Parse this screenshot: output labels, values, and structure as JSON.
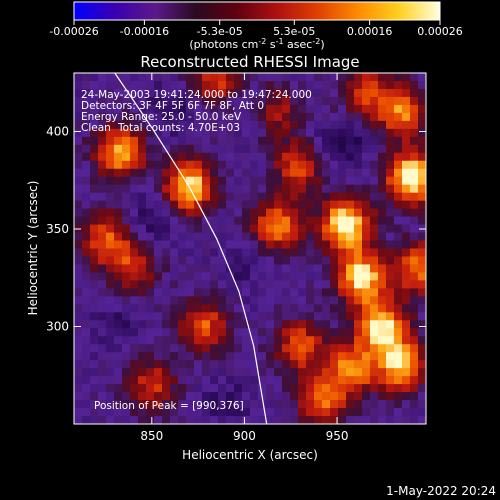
{
  "chart_data": {
    "type": "heatmap",
    "title": "Reconstructed RHESSI Image",
    "xlabel": "Heliocentric X (arcsec)",
    "ylabel": "Heliocentric Y (arcsec)",
    "xlim": [
      808,
      998
    ],
    "ylim": [
      250,
      430
    ],
    "xticks": [
      850,
      900,
      950
    ],
    "xtick_labels": [
      "850",
      "900",
      "950"
    ],
    "yticks": [
      300,
      350,
      400
    ],
    "ytick_labels": [
      "300",
      "350",
      "400"
    ],
    "colorbar": {
      "range": [
        -0.00026,
        0.00026
      ],
      "ticks": [
        -0.00026,
        -0.00016,
        -5.3e-05,
        5.3e-05,
        0.00016,
        0.00026
      ],
      "tick_labels": [
        "-0.00026",
        "-0.00016",
        "-5.3e-05",
        "5.3e-05",
        "0.00016",
        "0.00026"
      ],
      "unit_prefix": "(photons cm",
      "unit_exp1": "-2",
      "unit_mid1": " s",
      "unit_exp2": "-1",
      "unit_mid2": " asec",
      "unit_exp3": "-2",
      "unit_suffix": ")",
      "colors": [
        "#0000ff",
        "#3a00b0",
        "#5a1a8a",
        "#2a0a20",
        "#600010",
        "#b01010",
        "#e04000",
        "#ff8c00",
        "#ffd020",
        "#ffffe0"
      ]
    },
    "limb_curve": [
      [
        830,
        430
      ],
      [
        850,
        402
      ],
      [
        870,
        372
      ],
      [
        885,
        345
      ],
      [
        897,
        318
      ],
      [
        905,
        290
      ],
      [
        912,
        250
      ]
    ],
    "peak_position": [
      990,
      376
    ],
    "hotspots": [
      [
        885,
        426,
        0.5
      ],
      [
        870,
        372,
        0.9
      ],
      [
        833,
        390,
        0.8
      ],
      [
        825,
        345,
        0.6
      ],
      [
        878,
        300,
        0.6
      ],
      [
        840,
        330,
        0.5
      ],
      [
        918,
        352,
        0.7
      ],
      [
        930,
        382,
        0.6
      ],
      [
        955,
        352,
        1.0
      ],
      [
        963,
        325,
        0.9
      ],
      [
        990,
        376,
        1.0
      ],
      [
        985,
        410,
        0.7
      ],
      [
        974,
        300,
        0.9
      ],
      [
        985,
        280,
        0.8
      ],
      [
        958,
        278,
        0.7
      ],
      [
        930,
        290,
        0.6
      ],
      [
        942,
        262,
        0.6
      ],
      [
        965,
        420,
        0.5
      ],
      [
        850,
        270,
        0.5
      ],
      [
        915,
        410,
        0.5
      ],
      [
        995,
        330,
        0.7
      ]
    ],
    "coldspots": [
      [
        905,
        410,
        0.9
      ],
      [
        860,
        410,
        0.7
      ],
      [
        850,
        355,
        0.8
      ],
      [
        945,
        390,
        0.7
      ],
      [
        890,
        260,
        0.6
      ],
      [
        960,
        395,
        0.6
      ],
      [
        830,
        300,
        0.5
      ],
      [
        900,
        330,
        0.5
      ]
    ]
  },
  "annotations": {
    "time_range": "24-May-2003 19:41:24.000 to 19:47:24.000",
    "detectors": "Detectors: 3F 4F 5F 6F 7F 8F, Att 0",
    "energy": "Energy Range: 25.0 - 50.0 keV",
    "method": "Clean",
    "total_counts": "Total counts: 4.70E+03",
    "peak": "Position of Peak = [990,376]"
  },
  "footer": {
    "date": "1-May-2022 20:24"
  }
}
